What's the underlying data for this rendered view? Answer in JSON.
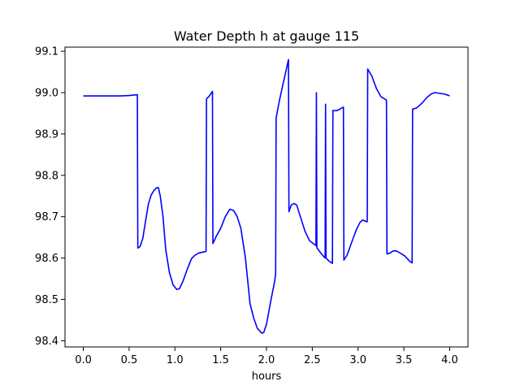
{
  "chart_data": {
    "type": "line",
    "title": "Water Depth h at gauge 115",
    "xlabel": "hours",
    "ylabel": "",
    "xlim": [
      -0.2,
      4.2
    ],
    "ylim": [
      98.385,
      99.11
    ],
    "xticks": [
      0.0,
      0.5,
      1.0,
      1.5,
      2.0,
      2.5,
      3.0,
      3.5,
      4.0
    ],
    "xtick_labels": [
      "0.0",
      "0.5",
      "1.0",
      "1.5",
      "2.0",
      "2.5",
      "3.0",
      "3.5",
      "4.0"
    ],
    "yticks": [
      98.4,
      98.5,
      98.6,
      98.7,
      98.8,
      98.9,
      99.0,
      99.1
    ],
    "ytick_labels": [
      "98.4",
      "98.5",
      "98.6",
      "98.7",
      "98.8",
      "98.9",
      "99.0",
      "99.1"
    ],
    "grid": false,
    "series": [
      {
        "color": "#0000ff",
        "points": [
          [
            0.0,
            98.992
          ],
          [
            0.2,
            98.992
          ],
          [
            0.4,
            98.992
          ],
          [
            0.5,
            98.993
          ],
          [
            0.59,
            98.995
          ],
          [
            0.595,
            98.624
          ],
          [
            0.62,
            98.628
          ],
          [
            0.65,
            98.648
          ],
          [
            0.68,
            98.69
          ],
          [
            0.71,
            98.73
          ],
          [
            0.74,
            98.752
          ],
          [
            0.77,
            98.763
          ],
          [
            0.8,
            98.77
          ],
          [
            0.82,
            98.77
          ],
          [
            0.84,
            98.75
          ],
          [
            0.87,
            98.7
          ],
          [
            0.9,
            98.62
          ],
          [
            0.94,
            98.565
          ],
          [
            0.98,
            98.535
          ],
          [
            1.02,
            98.524
          ],
          [
            1.05,
            98.526
          ],
          [
            1.09,
            98.545
          ],
          [
            1.13,
            98.57
          ],
          [
            1.18,
            98.598
          ],
          [
            1.22,
            98.607
          ],
          [
            1.26,
            98.612
          ],
          [
            1.34,
            98.616
          ],
          [
            1.345,
            98.985
          ],
          [
            1.37,
            98.99
          ],
          [
            1.41,
            99.003
          ],
          [
            1.415,
            98.635
          ],
          [
            1.45,
            98.652
          ],
          [
            1.5,
            98.672
          ],
          [
            1.55,
            98.7
          ],
          [
            1.6,
            98.718
          ],
          [
            1.64,
            98.715
          ],
          [
            1.68,
            98.7
          ],
          [
            1.72,
            98.672
          ],
          [
            1.77,
            98.6
          ],
          [
            1.82,
            98.49
          ],
          [
            1.86,
            98.455
          ],
          [
            1.9,
            98.43
          ],
          [
            1.95,
            98.418
          ],
          [
            1.97,
            98.42
          ],
          [
            2.0,
            98.44
          ],
          [
            2.05,
            98.5
          ],
          [
            2.09,
            98.545
          ],
          [
            2.1,
            98.563
          ],
          [
            2.105,
            98.938
          ],
          [
            2.14,
            98.98
          ],
          [
            2.18,
            99.02
          ],
          [
            2.24,
            99.08
          ],
          [
            2.245,
            98.712
          ],
          [
            2.27,
            98.728
          ],
          [
            2.3,
            98.732
          ],
          [
            2.33,
            98.728
          ],
          [
            2.37,
            98.7
          ],
          [
            2.42,
            98.665
          ],
          [
            2.47,
            98.642
          ],
          [
            2.54,
            98.63
          ],
          [
            2.545,
            99.0
          ],
          [
            2.55,
            98.625
          ],
          [
            2.6,
            98.61
          ],
          [
            2.64,
            98.6
          ],
          [
            2.645,
            98.972
          ],
          [
            2.65,
            98.6
          ],
          [
            2.68,
            98.593
          ],
          [
            2.72,
            98.587
          ],
          [
            2.725,
            98.957
          ],
          [
            2.76,
            98.956
          ],
          [
            2.8,
            98.96
          ],
          [
            2.84,
            98.965
          ],
          [
            2.845,
            98.595
          ],
          [
            2.88,
            98.607
          ],
          [
            2.93,
            98.638
          ],
          [
            2.98,
            98.668
          ],
          [
            3.02,
            98.686
          ],
          [
            3.05,
            98.692
          ],
          [
            3.09,
            98.688
          ],
          [
            3.1,
            98.688
          ],
          [
            3.105,
            99.057
          ],
          [
            3.15,
            99.04
          ],
          [
            3.2,
            99.01
          ],
          [
            3.25,
            98.99
          ],
          [
            3.31,
            98.982
          ],
          [
            3.315,
            98.61
          ],
          [
            3.35,
            98.612
          ],
          [
            3.38,
            98.617
          ],
          [
            3.42,
            98.617
          ],
          [
            3.46,
            98.612
          ],
          [
            3.51,
            98.605
          ],
          [
            3.56,
            98.593
          ],
          [
            3.59,
            98.588
          ],
          [
            3.595,
            98.96
          ],
          [
            3.64,
            98.963
          ],
          [
            3.7,
            98.975
          ],
          [
            3.75,
            98.988
          ],
          [
            3.8,
            98.997
          ],
          [
            3.84,
            99.0
          ],
          [
            3.9,
            98.998
          ],
          [
            3.95,
            98.996
          ],
          [
            4.0,
            98.992
          ]
        ]
      }
    ]
  }
}
